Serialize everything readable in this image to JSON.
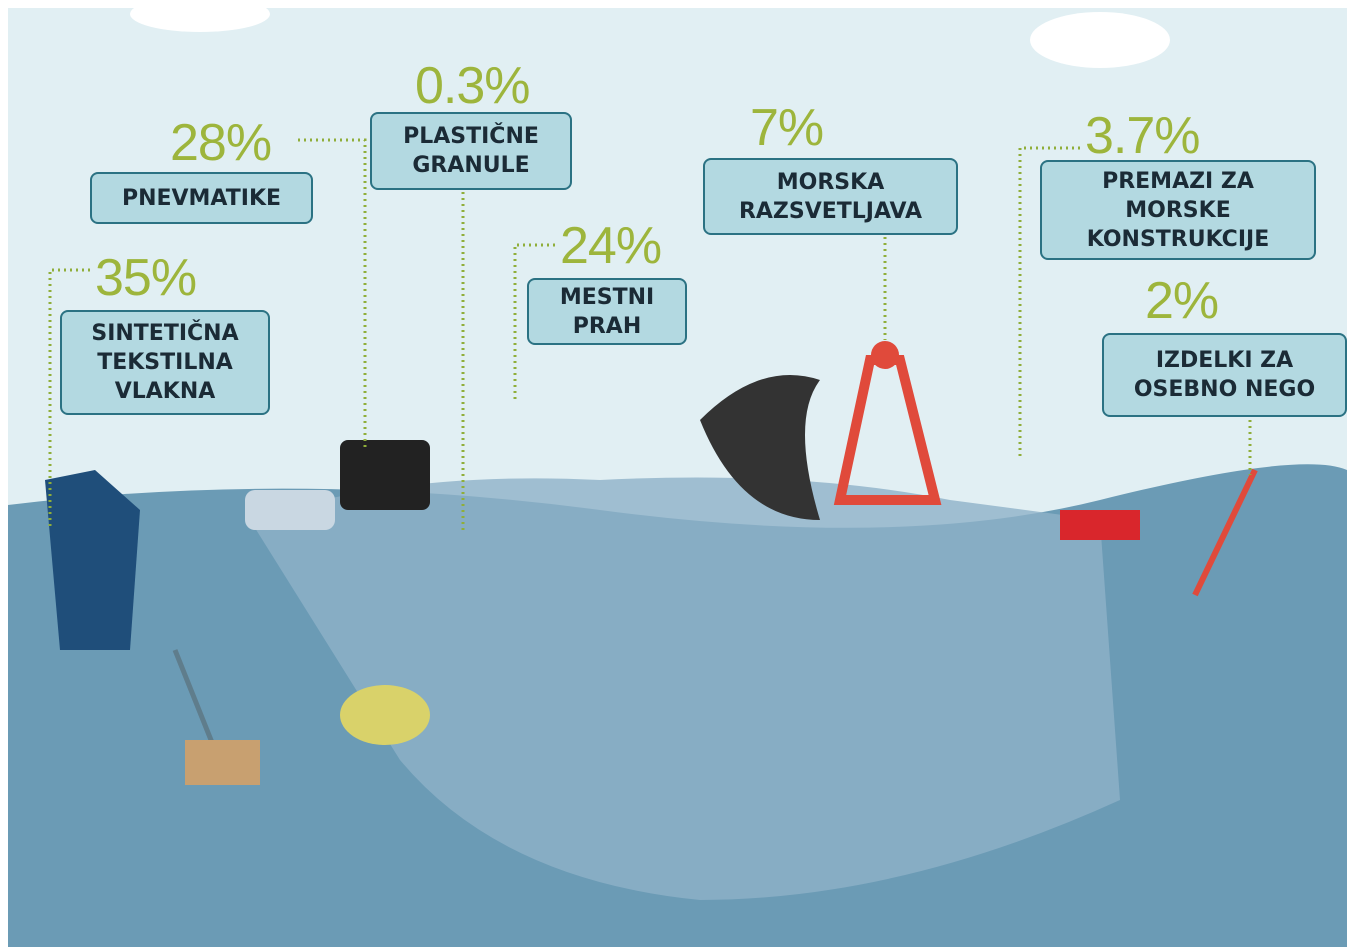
{
  "items": [
    {
      "percent": "35%",
      "label": [
        "SINTETIČNA",
        "TEKSTILNA",
        "VLAKNA"
      ]
    },
    {
      "percent": "28%",
      "label": [
        "PNEVMATIKE"
      ]
    },
    {
      "percent": "0.3%",
      "label": [
        "PLASTIČNE",
        "GRANULE"
      ]
    },
    {
      "percent": "24%",
      "label": [
        "MESTNI",
        "PRAH"
      ]
    },
    {
      "percent": "7%",
      "label": [
        "MORSKA",
        "RAZSVETLJAVA"
      ]
    },
    {
      "percent": "3.7%",
      "label": [
        "PREMAZI ZA",
        "MORSKE",
        "KONSTRUKCIJE"
      ]
    },
    {
      "percent": "2%",
      "label": [
        "IZDELKI ZA",
        "OSEBNO NEGO"
      ]
    }
  ]
}
